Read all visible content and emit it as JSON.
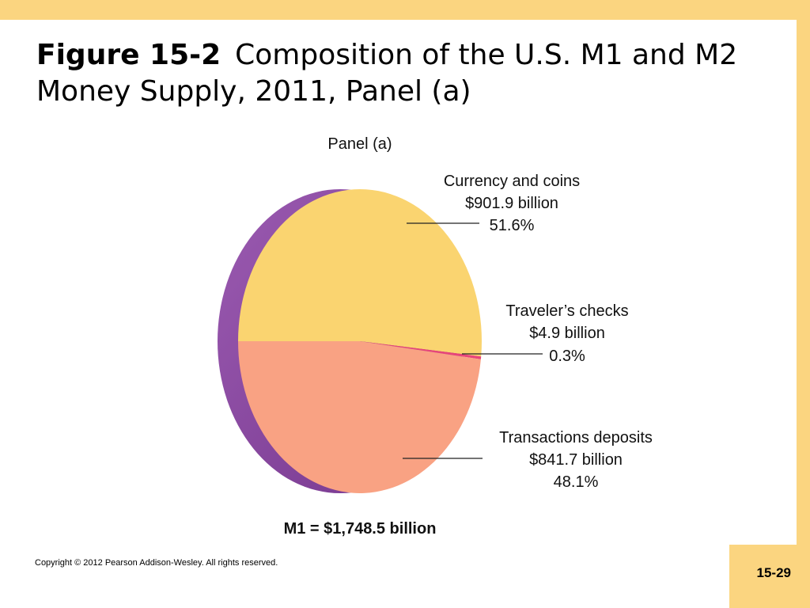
{
  "slide": {
    "title_bold": "Figure 15-2",
    "title_rest": "Composition of the U.S. M1 and M2 Money Supply, 2011, Panel (a)",
    "copyright": "Copyright © 2012 Pearson Addison-Wesley. All rights reserved.",
    "page_number": "15-29"
  },
  "chart_data": {
    "type": "pie",
    "title": "Panel (a)",
    "total_label": "M1 = $1,748.5 billion",
    "slices": [
      {
        "name": "Currency and coins",
        "amount_label": "$901.9 billion",
        "percent_label": "51.6%",
        "value": 51.6,
        "color": "#fad470"
      },
      {
        "name": "Traveler’s checks",
        "amount_label": "$4.9 billion",
        "percent_label": "0.3%",
        "value": 0.3,
        "color": "#e8457a"
      },
      {
        "name": "Transactions deposits",
        "amount_label": "$841.7 billion",
        "percent_label": "48.1%",
        "value": 48.1,
        "color": "#f9a283"
      }
    ],
    "colors": {
      "side": "#8a4aa0"
    }
  }
}
